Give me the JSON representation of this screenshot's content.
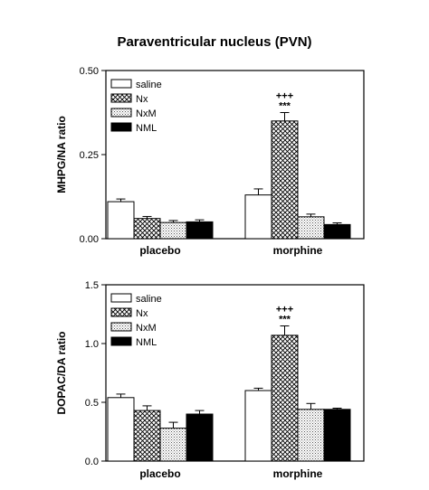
{
  "figure_title": "Paraventricular nucleus (PVN)",
  "colors": {
    "saline": "#ffffff",
    "Nx": "#cfcfcf",
    "NxM": "#e0e0e0",
    "NML": "#000000"
  },
  "chart_data": [
    {
      "type": "bar",
      "ylabel": "MHPG/NA ratio",
      "ylim": [
        0,
        0.5
      ],
      "yticks": [
        "0.00",
        "0.25",
        "0.50"
      ],
      "ytick_values": [
        0,
        0.25,
        0.5
      ],
      "categories": [
        "placebo",
        "morphine"
      ],
      "legend_placement": "top-left",
      "series": [
        {
          "name": "saline",
          "values": [
            0.11,
            0.13
          ],
          "errors": [
            0.008,
            0.018
          ]
        },
        {
          "name": "Nx",
          "values": [
            0.06,
            0.35
          ],
          "errors": [
            0.006,
            0.025
          ]
        },
        {
          "name": "NxM",
          "values": [
            0.048,
            0.065
          ],
          "errors": [
            0.006,
            0.008
          ]
        },
        {
          "name": "NML",
          "values": [
            0.05,
            0.042
          ],
          "errors": [
            0.006,
            0.005
          ]
        }
      ],
      "annotations": [
        {
          "category": "morphine",
          "series": "Nx",
          "lines": [
            "+++",
            "***"
          ]
        }
      ]
    },
    {
      "type": "bar",
      "ylabel": "DOPAC/DA ratio",
      "ylim": [
        0,
        1.5
      ],
      "yticks": [
        "0.0",
        "0.5",
        "1.0",
        "1.5"
      ],
      "ytick_values": [
        0,
        0.5,
        1.0,
        1.5
      ],
      "categories": [
        "placebo",
        "morphine"
      ],
      "legend_placement": "top-left",
      "series": [
        {
          "name": "saline",
          "values": [
            0.54,
            0.6
          ],
          "errors": [
            0.03,
            0.02
          ]
        },
        {
          "name": "Nx",
          "values": [
            0.43,
            1.07
          ],
          "errors": [
            0.04,
            0.08
          ]
        },
        {
          "name": "NxM",
          "values": [
            0.28,
            0.44
          ],
          "errors": [
            0.05,
            0.05
          ]
        },
        {
          "name": "NML",
          "values": [
            0.4,
            0.44
          ],
          "errors": [
            0.03,
            0.01
          ]
        }
      ],
      "annotations": [
        {
          "category": "morphine",
          "series": "Nx",
          "lines": [
            "+++",
            "***"
          ]
        }
      ]
    }
  ]
}
